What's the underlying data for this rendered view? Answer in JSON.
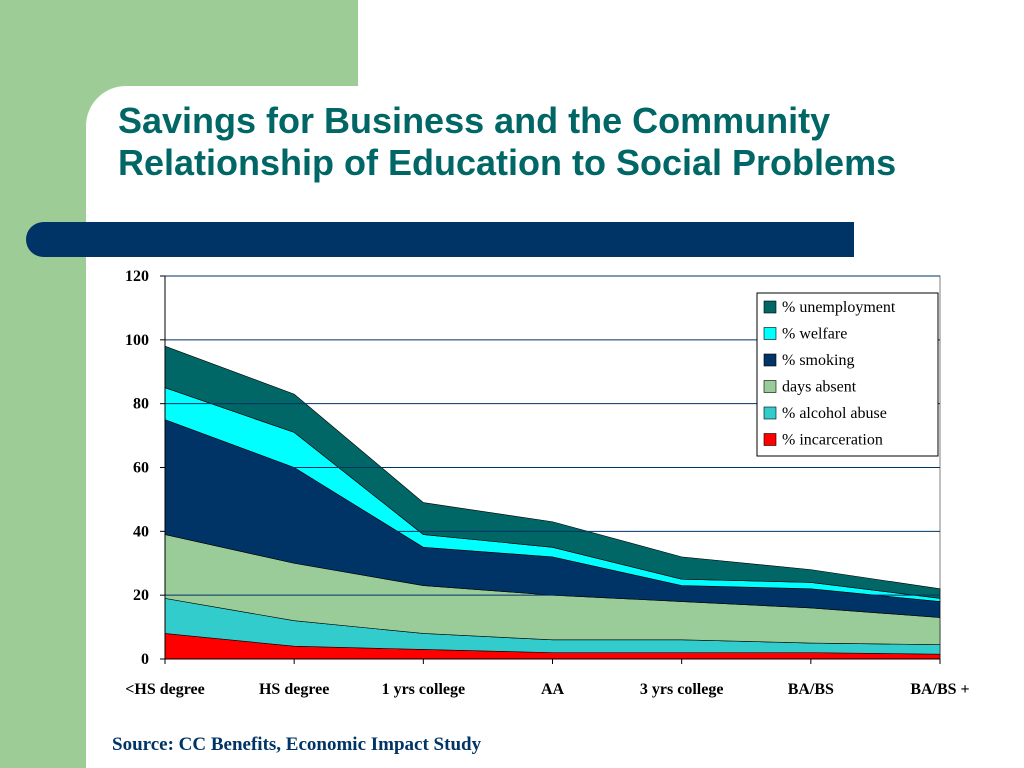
{
  "slide": {
    "title_line1": "Savings for Business and the Community",
    "title_line2": "Relationship of Education to Social Problems",
    "source": "Source: CC Benefits, Economic Impact Study"
  },
  "colors": {
    "background_green": "#9dcc97",
    "title": "#006666",
    "navy_bar": "#003366",
    "source_text": "#003366"
  },
  "chart_data": {
    "type": "area",
    "stacked": true,
    "categories": [
      "<HS degree",
      "HS degree",
      "1 yrs college",
      "AA",
      "3 yrs college",
      "BA/BS",
      "BA/BS +"
    ],
    "ylim": [
      0,
      120
    ],
    "yticks": [
      0,
      20,
      40,
      60,
      80,
      100,
      120
    ],
    "grid": true,
    "legend_position": "top-right",
    "title": "",
    "xlabel": "",
    "ylabel": "",
    "series": [
      {
        "name": "% incarceration",
        "color": "#ff0000",
        "values": [
          8,
          4,
          3,
          2,
          2,
          2,
          1.5
        ]
      },
      {
        "name": "% alcohol abuse",
        "color": "#33cccc",
        "values": [
          11,
          8,
          5,
          4,
          4,
          3,
          3
        ]
      },
      {
        "name": "days absent",
        "color": "#99cc99",
        "values": [
          20,
          18,
          15,
          14,
          12,
          11,
          8.5
        ]
      },
      {
        "name": "% smoking",
        "color": "#003366",
        "values": [
          36,
          30,
          12,
          12,
          5,
          6,
          5
        ]
      },
      {
        "name": "% welfare",
        "color": "#00ffff",
        "values": [
          10,
          11,
          4,
          3,
          2,
          2,
          1
        ]
      },
      {
        "name": "% unemployment",
        "color": "#006666",
        "values": [
          13,
          12,
          10,
          8,
          7,
          4,
          3
        ]
      }
    ]
  }
}
